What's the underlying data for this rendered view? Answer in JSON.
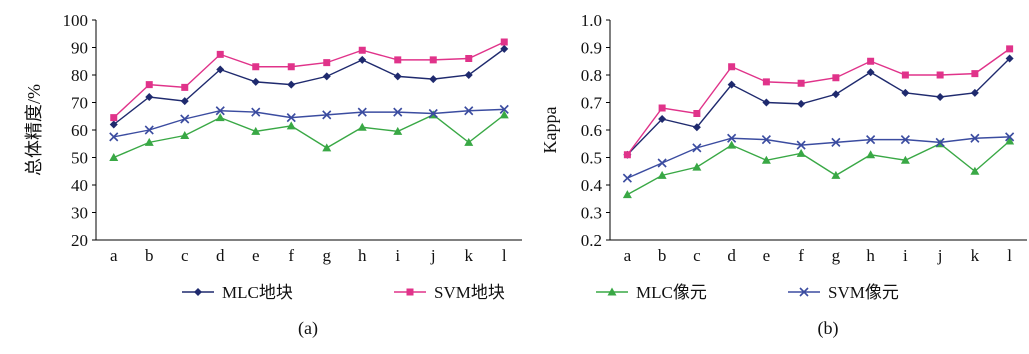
{
  "legend": [
    {
      "label": "MLC地块",
      "color": "#1f2a6e",
      "marker": "diamond"
    },
    {
      "label": "SVM地块",
      "color": "#e0338a",
      "marker": "square"
    },
    {
      "label": "MLC像元",
      "color": "#39a845",
      "marker": "triangle"
    },
    {
      "label": "SVM像元",
      "color": "#3b4ca0",
      "marker": "x"
    }
  ],
  "chart_data": [
    {
      "type": "line",
      "panel_label": "(a)",
      "ylabel": "总体精度/%",
      "xlabel": "",
      "categories": [
        "a",
        "b",
        "c",
        "d",
        "e",
        "f",
        "g",
        "h",
        "i",
        "j",
        "k",
        "l"
      ],
      "ylim": [
        20,
        100
      ],
      "yticks": [
        "20",
        "30",
        "40",
        "50",
        "60",
        "70",
        "80",
        "90",
        "100"
      ],
      "series": [
        {
          "name": "MLC地块",
          "values": [
            62,
            72,
            70.5,
            82,
            77.5,
            76.5,
            79.5,
            85.5,
            79.5,
            78.5,
            80,
            89.5
          ]
        },
        {
          "name": "SVM地块",
          "values": [
            64.5,
            76.5,
            75.5,
            87.5,
            83,
            83,
            84.5,
            89,
            85.5,
            85.5,
            86,
            92
          ]
        },
        {
          "name": "MLC像元",
          "values": [
            50,
            55.5,
            58,
            64.5,
            59.5,
            61.5,
            53.5,
            61,
            59.5,
            65.5,
            55.5,
            65.5
          ]
        },
        {
          "name": "SVM像元",
          "values": [
            57.5,
            60,
            64,
            67,
            66.5,
            64.5,
            65.5,
            66.5,
            66.5,
            66,
            67,
            67.5
          ]
        }
      ]
    },
    {
      "type": "line",
      "panel_label": "(b)",
      "ylabel": "Kappa",
      "xlabel": "",
      "categories": [
        "a",
        "b",
        "c",
        "d",
        "e",
        "f",
        "g",
        "h",
        "i",
        "j",
        "k",
        "l"
      ],
      "ylim": [
        0.2,
        1.0
      ],
      "yticks": [
        "0.2",
        "0.3",
        "0.4",
        "0.5",
        "0.6",
        "0.7",
        "0.8",
        "0.9",
        "1.0"
      ],
      "series": [
        {
          "name": "MLC地块",
          "values": [
            0.51,
            0.64,
            0.61,
            0.765,
            0.7,
            0.695,
            0.73,
            0.81,
            0.735,
            0.72,
            0.735,
            0.86
          ]
        },
        {
          "name": "SVM地块",
          "values": [
            0.51,
            0.68,
            0.66,
            0.83,
            0.775,
            0.77,
            0.79,
            0.85,
            0.8,
            0.8,
            0.805,
            0.895
          ]
        },
        {
          "name": "MLC像元",
          "values": [
            0.365,
            0.435,
            0.465,
            0.545,
            0.49,
            0.515,
            0.435,
            0.51,
            0.49,
            0.55,
            0.45,
            0.56
          ]
        },
        {
          "name": "SVM像元",
          "values": [
            0.425,
            0.48,
            0.535,
            0.57,
            0.565,
            0.545,
            0.555,
            0.565,
            0.565,
            0.555,
            0.57,
            0.575
          ]
        }
      ]
    }
  ]
}
